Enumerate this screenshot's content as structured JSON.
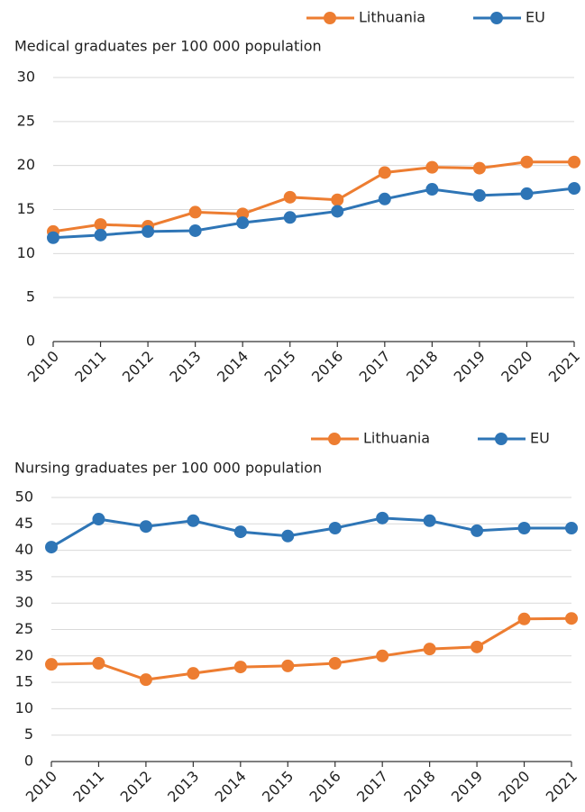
{
  "chart_data": [
    {
      "type": "line",
      "title": "Medical graduates per 100 000 population",
      "categories": [
        "2010",
        "2011",
        "2012",
        "2013",
        "2014",
        "2015",
        "2016",
        "2017",
        "2018",
        "2019",
        "2020",
        "2021"
      ],
      "series": [
        {
          "name": "Lithuania",
          "color": "#ed7d31",
          "values": [
            12.5,
            13.3,
            13.1,
            14.7,
            14.5,
            16.4,
            16.1,
            19.2,
            19.8,
            19.7,
            20.4,
            20.4
          ]
        },
        {
          "name": "EU",
          "color": "#2e75b6",
          "values": [
            11.8,
            12.1,
            12.5,
            12.6,
            13.5,
            14.1,
            14.8,
            16.2,
            17.3,
            16.6,
            16.8,
            17.4
          ]
        }
      ],
      "ylim": [
        0,
        30
      ],
      "yticks": [
        0,
        5,
        10,
        15,
        20,
        25,
        30
      ],
      "grid": true,
      "legend": "top"
    },
    {
      "type": "line",
      "title": "Nursing graduates per 100 000 population",
      "categories": [
        "2010",
        "2011",
        "2012",
        "2013",
        "2014",
        "2015",
        "2016",
        "2017",
        "2018",
        "2019",
        "2020",
        "2021"
      ],
      "series": [
        {
          "name": "Lithuania",
          "color": "#ed7d31",
          "values": [
            18.4,
            18.6,
            15.5,
            16.7,
            17.9,
            18.1,
            18.6,
            20.0,
            21.3,
            21.7,
            27.0,
            27.1
          ]
        },
        {
          "name": "EU",
          "color": "#2e75b6",
          "values": [
            40.6,
            45.9,
            44.5,
            45.6,
            43.5,
            42.7,
            44.2,
            46.1,
            45.6,
            43.7,
            44.2,
            44.2
          ]
        }
      ],
      "ylim": [
        0,
        50
      ],
      "yticks": [
        0,
        5,
        10,
        15,
        20,
        25,
        30,
        35,
        40,
        45,
        50
      ],
      "grid": true,
      "legend": "top"
    }
  ]
}
